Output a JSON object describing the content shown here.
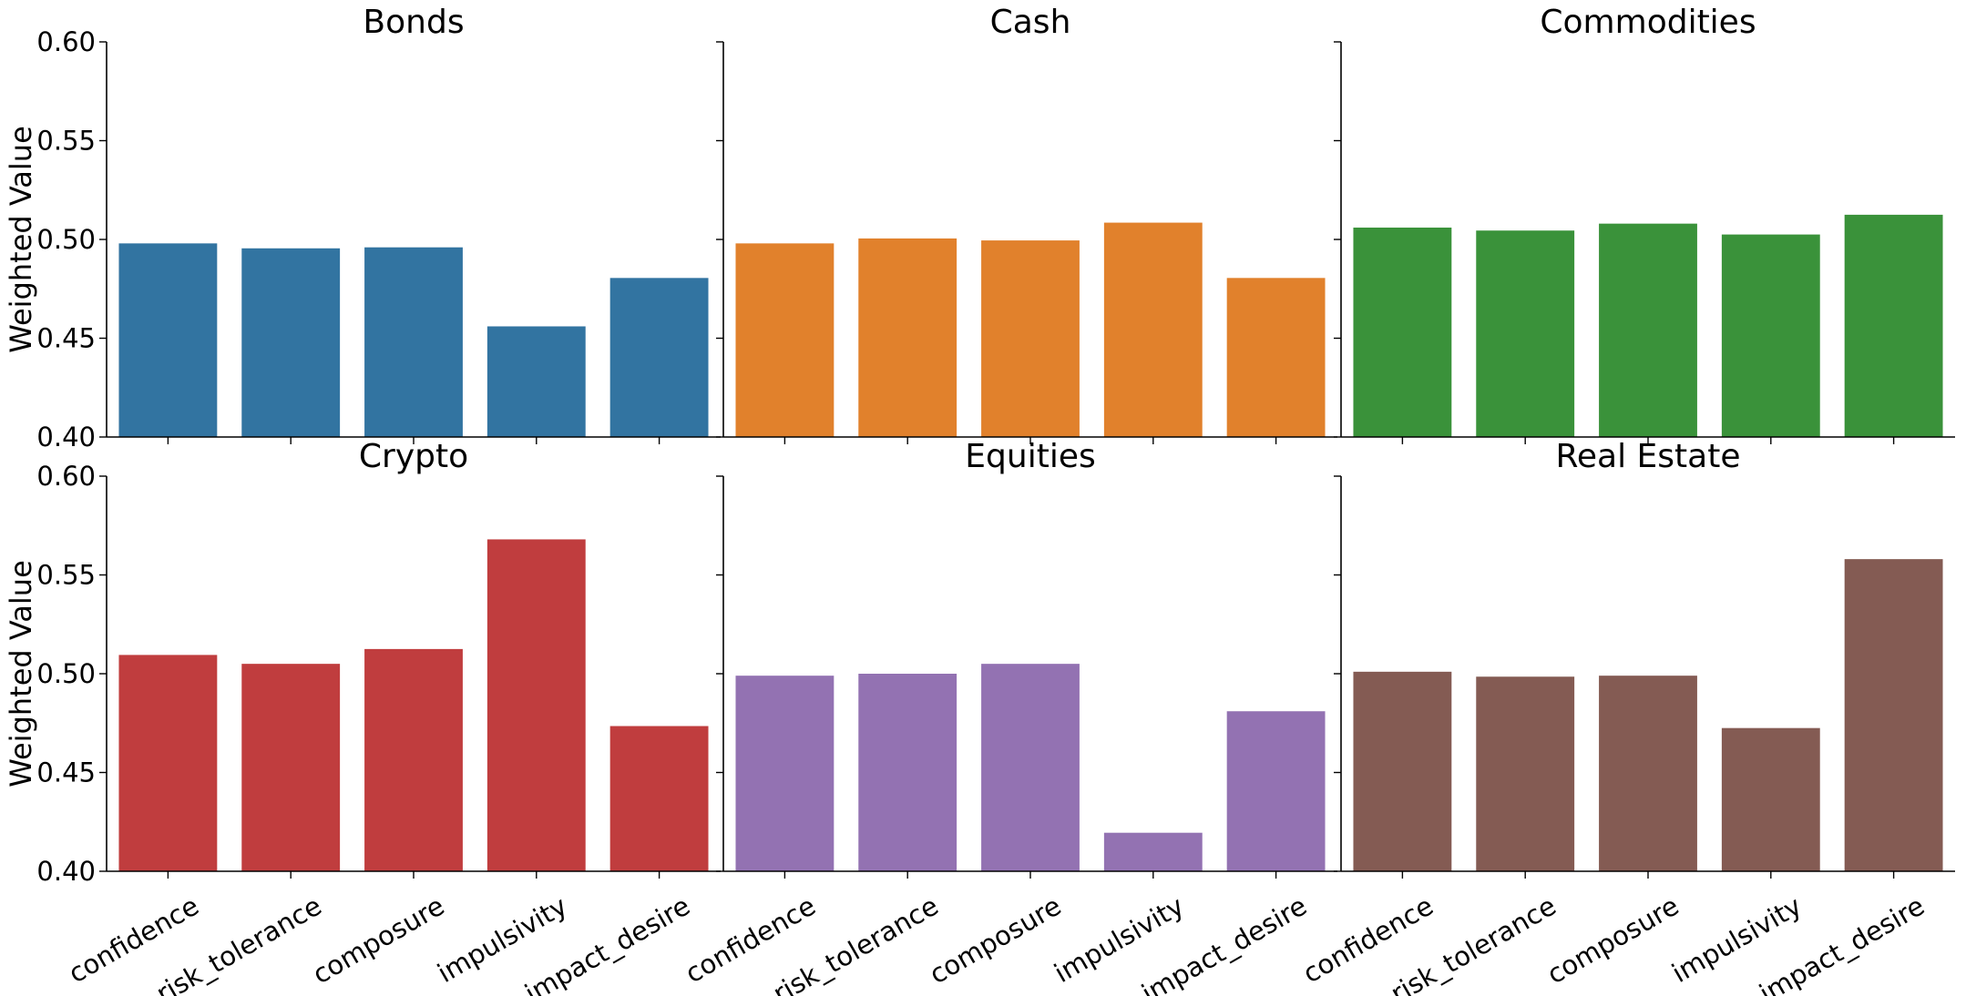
{
  "chart_data": [
    {
      "type": "bar",
      "title": "Bonds",
      "categories": [
        "confidence",
        "risk_tolerance",
        "composure",
        "impulsivity",
        "impact_desire"
      ],
      "values": [
        0.498,
        0.4955,
        0.496,
        0.456,
        0.4805
      ],
      "xlabel": "",
      "ylabel": "Weighted Value",
      "ylim": [
        0.4,
        0.6
      ],
      "yticks": [
        "0.40",
        "0.45",
        "0.50",
        "0.55",
        "0.60"
      ],
      "color": "#3274a1",
      "grid": false
    },
    {
      "type": "bar",
      "title": "Cash",
      "categories": [
        "confidence",
        "risk_tolerance",
        "composure",
        "impulsivity",
        "impact_desire"
      ],
      "values": [
        0.498,
        0.5005,
        0.4995,
        0.5085,
        0.4805
      ],
      "xlabel": "",
      "ylabel": "",
      "ylim": [
        0.4,
        0.6
      ],
      "color": "#e1812c",
      "grid": false
    },
    {
      "type": "bar",
      "title": "Commodities",
      "categories": [
        "confidence",
        "risk_tolerance",
        "composure",
        "impulsivity",
        "impact_desire"
      ],
      "values": [
        0.506,
        0.5045,
        0.508,
        0.5025,
        0.5125
      ],
      "xlabel": "",
      "ylabel": "",
      "ylim": [
        0.4,
        0.6
      ],
      "color": "#3a923a",
      "grid": false
    },
    {
      "type": "bar",
      "title": "Crypto",
      "categories": [
        "confidence",
        "risk_tolerance",
        "composure",
        "impulsivity",
        "impact_desire"
      ],
      "values": [
        0.5095,
        0.505,
        0.5125,
        0.568,
        0.4735
      ],
      "xlabel": "",
      "ylabel": "Weighted Value",
      "ylim": [
        0.4,
        0.6
      ],
      "yticks": [
        "0.40",
        "0.45",
        "0.50",
        "0.55",
        "0.60"
      ],
      "color": "#c03d3e",
      "grid": false
    },
    {
      "type": "bar",
      "title": "Equities",
      "categories": [
        "confidence",
        "risk_tolerance",
        "composure",
        "impulsivity",
        "impact_desire"
      ],
      "values": [
        0.499,
        0.5,
        0.505,
        0.4195,
        0.481
      ],
      "xlabel": "",
      "ylabel": "",
      "ylim": [
        0.4,
        0.6
      ],
      "color": "#9372b2",
      "grid": false
    },
    {
      "type": "bar",
      "title": "Real Estate",
      "categories": [
        "confidence",
        "risk_tolerance",
        "composure",
        "impulsivity",
        "impact_desire"
      ],
      "values": [
        0.501,
        0.4985,
        0.499,
        0.4725,
        0.558
      ],
      "xlabel": "",
      "ylabel": "",
      "ylim": [
        0.4,
        0.6
      ],
      "color": "#845b53",
      "grid": false
    }
  ]
}
